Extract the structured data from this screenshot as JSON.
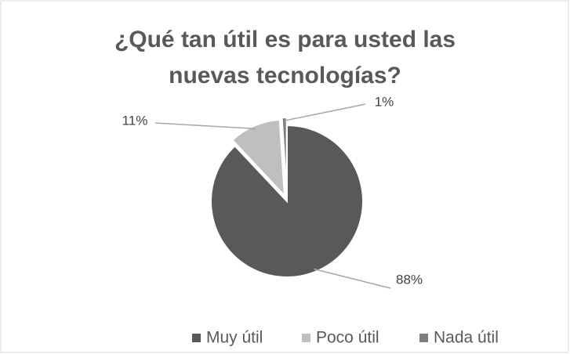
{
  "chart_data": {
    "type": "pie",
    "title": "¿Qué tan útil es para usted las nuevas tecnologías?",
    "categories": [
      "Muy útil",
      "Poco útil",
      "Nada útil"
    ],
    "values": [
      88,
      11,
      1
    ],
    "value_labels": [
      "88%",
      "11%",
      "1%"
    ],
    "colors": [
      "#595959",
      "#bfbfbf",
      "#7f7f7f"
    ],
    "legend": "bottom"
  }
}
